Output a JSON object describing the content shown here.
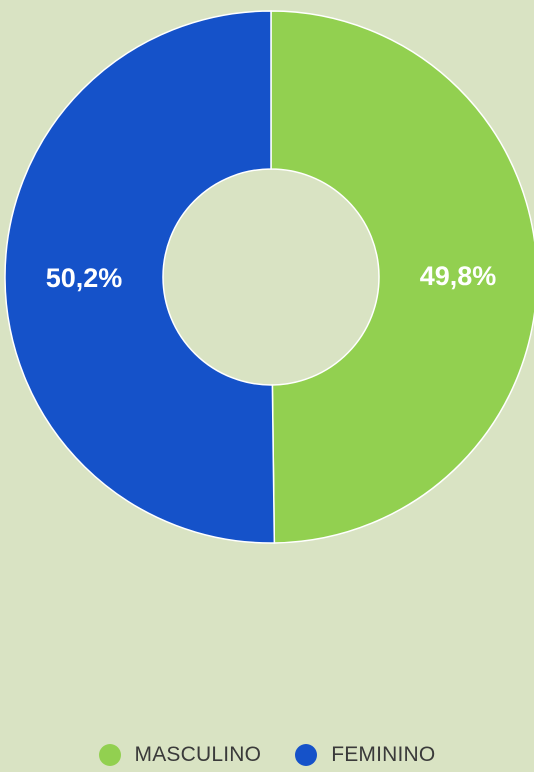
{
  "chart_data": {
    "type": "pie",
    "donut": true,
    "categories": [
      "MASCULINO",
      "FEMININO"
    ],
    "values": [
      49.8,
      50.2
    ],
    "value_labels": [
      "49,8%",
      "50,2%"
    ],
    "colors": [
      "#92d050",
      "#1552c9"
    ],
    "legend_position": "bottom"
  },
  "legend": {
    "items": [
      {
        "label": "MASCULINO",
        "color": "#92d050"
      },
      {
        "label": "FEMININO",
        "color": "#1552c9"
      }
    ]
  },
  "background_color": "#d9e3c3"
}
